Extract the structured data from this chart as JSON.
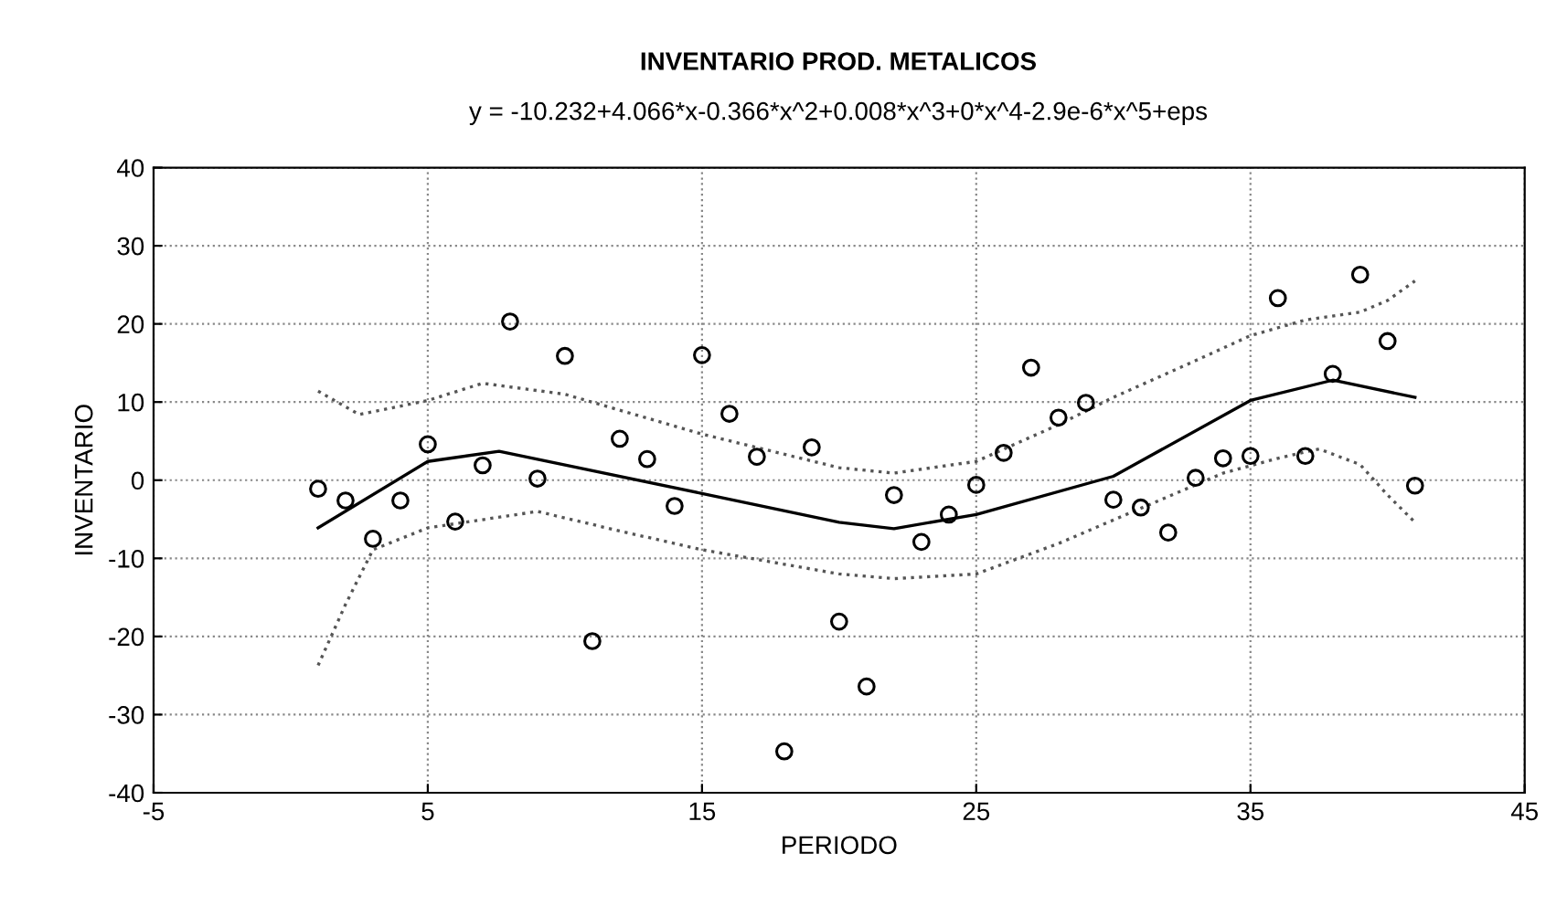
{
  "chart_data": {
    "type": "scatter",
    "title": "INVENTARIO PROD. METALICOS",
    "subtitle": "y = -10.232+4.066*x-0.366*x^2+0.008*x^3+0*x^4-2.9e-6*x^5+eps",
    "xlabel": "PERIODO",
    "ylabel": "INVENTARIO",
    "xlim": [
      -5,
      45
    ],
    "xticks": [
      -5,
      5,
      15,
      25,
      35,
      45
    ],
    "ylim": [
      -40,
      40
    ],
    "yticks": [
      -40,
      -30,
      -20,
      -10,
      0,
      10,
      20,
      30,
      40
    ],
    "grid": true,
    "legend": false,
    "series": [
      {
        "marker": "circle",
        "color": "#000000",
        "x": [
          1,
          2,
          3,
          4,
          5,
          6,
          7,
          8,
          9,
          10,
          11,
          12,
          13,
          14,
          15,
          16,
          17,
          18,
          19,
          20,
          21,
          22,
          23,
          24,
          25,
          26,
          27,
          28,
          29,
          30,
          31,
          32,
          33,
          34,
          35,
          36,
          37,
          38,
          39,
          40,
          41
        ],
        "values": [
          -1.1,
          -2.6,
          -7.5,
          -2.6,
          4.6,
          -5.3,
          1.9,
          20.3,
          0.2,
          15.9,
          -20.6,
          5.3,
          2.7,
          -3.3,
          16.0,
          8.5,
          3.0,
          -34.7,
          4.2,
          -18.1,
          -26.4,
          -1.9,
          -7.9,
          -4.4,
          -0.6,
          3.5,
          14.4,
          8.0,
          9.9,
          -2.5,
          -3.5,
          -6.7,
          0.3,
          2.8,
          3.1,
          23.3,
          3.1,
          13.6,
          26.3,
          17.8,
          -0.7
        ]
      },
      {
        "type": "line",
        "marker": "none",
        "line_style": "solid",
        "color": "#000000",
        "x": [
          1,
          5,
          7.6,
          15,
          20,
          22,
          25,
          30,
          35,
          38,
          41
        ],
        "values": [
          -6.1,
          2.4,
          3.7,
          -1.7,
          -5.4,
          -6.2,
          -4.4,
          0.5,
          10.2,
          12.8,
          10.6
        ]
      },
      {
        "type": "line",
        "marker": "none",
        "line_style": "dotted",
        "color": "#555555",
        "x": [
          1,
          2.5,
          5,
          7,
          10,
          15,
          20,
          22,
          25,
          28,
          30,
          33,
          35,
          37,
          39,
          40,
          41
        ],
        "values": [
          11.4,
          8.4,
          10.2,
          12.4,
          11.0,
          5.9,
          1.6,
          0.9,
          2.4,
          7.1,
          10.6,
          15.3,
          18.5,
          20.5,
          21.5,
          23.0,
          25.5
        ]
      },
      {
        "type": "line",
        "marker": "none",
        "line_style": "dotted",
        "color": "#555555",
        "x": [
          1,
          2,
          3,
          5,
          9,
          12,
          15,
          20,
          22,
          25,
          28,
          31,
          34,
          36,
          37.5,
          39,
          40,
          41
        ],
        "values": [
          -23.7,
          -15.9,
          -8.9,
          -6.1,
          -4.0,
          -6.5,
          -8.9,
          -12.0,
          -12.6,
          -12.0,
          -8.1,
          -3.6,
          0.9,
          2.8,
          4.0,
          2.0,
          -1.9,
          -5.4
        ]
      }
    ]
  }
}
